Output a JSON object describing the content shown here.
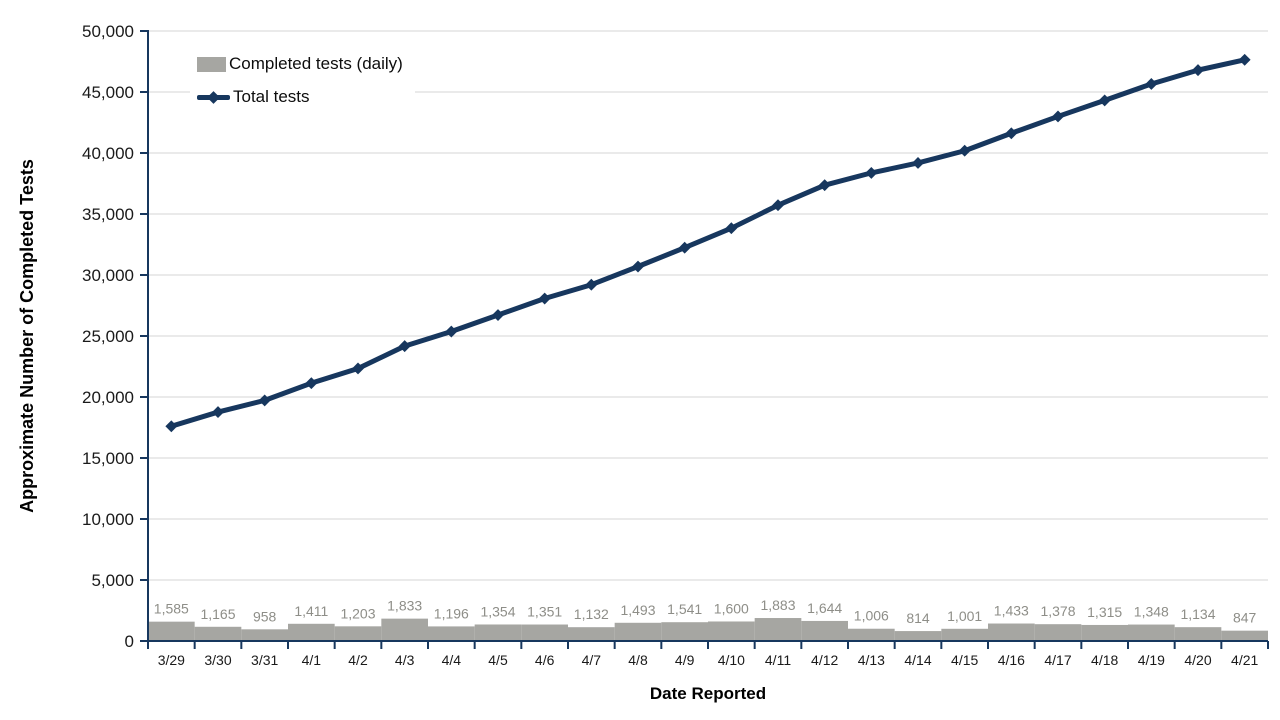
{
  "chart_data": {
    "type": "combo",
    "title": "",
    "xlabel": "Date Reported",
    "ylabel": "Approximate Number of Completed Tests",
    "categories": [
      "3/29",
      "3/30",
      "3/31",
      "4/1",
      "4/2",
      "4/3",
      "4/4",
      "4/5",
      "4/6",
      "4/7",
      "4/8",
      "4/9",
      "4/10",
      "4/11",
      "4/12",
      "4/13",
      "4/14",
      "4/15",
      "4/16",
      "4/17",
      "4/18",
      "4/19",
      "4/20",
      "4/21"
    ],
    "series": [
      {
        "name": "Completed tests (daily)",
        "type": "bar",
        "color": "#a6a6a2",
        "values": [
          1585,
          1165,
          958,
          1411,
          1203,
          1833,
          1196,
          1354,
          1351,
          1132,
          1493,
          1541,
          1600,
          1883,
          1644,
          1006,
          814,
          1001,
          1433,
          1378,
          1315,
          1348,
          1134,
          847
        ],
        "labels": [
          "1,585",
          "1,165",
          "958",
          "1,411",
          "1,203",
          "1,833",
          "1,196",
          "1,354",
          "1,351",
          "1,132",
          "1,493",
          "1,541",
          "1,600",
          "1,883",
          "1,644",
          "1,006",
          "814",
          "1,001",
          "1,433",
          "1,378",
          "1,315",
          "1,348",
          "1,134",
          "847"
        ]
      },
      {
        "name": "Total tests",
        "type": "line",
        "color": "#17375e",
        "values": [
          17600,
          18765,
          19723,
          21134,
          22337,
          24170,
          25366,
          26720,
          28071,
          29203,
          30696,
          32237,
          33837,
          35720,
          37364,
          38370,
          39184,
          40185,
          41618,
          42996,
          44311,
          45659,
          46793,
          47640
        ]
      }
    ],
    "ylim": [
      0,
      50000
    ],
    "ytick_interval": 5000,
    "ytick_labels": [
      "0",
      "5,000",
      "10,000",
      "15,000",
      "20,000",
      "25,000",
      "30,000",
      "35,000",
      "40,000",
      "45,000",
      "50,000"
    ],
    "grid": true,
    "legend_position": "top-left-inside"
  },
  "colors": {
    "background": "#ffffff",
    "bar": "#a6a6a2",
    "bar_label": "#8e8e88",
    "line": "#17375e",
    "grid": "#d6d6d6",
    "axis": "#17375e",
    "text": "#1a1a1a"
  }
}
